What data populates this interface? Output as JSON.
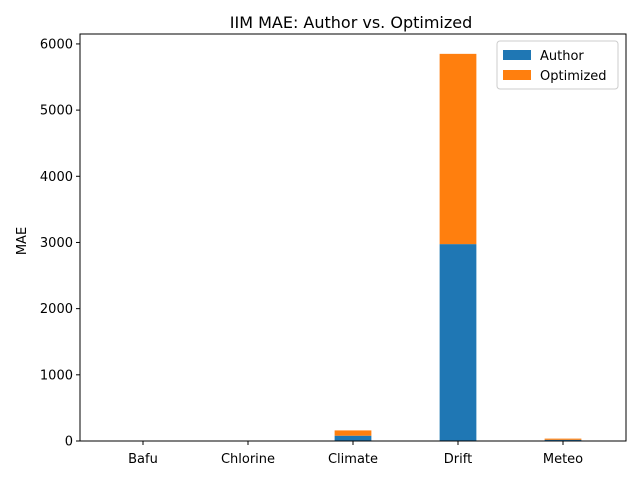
{
  "chart_data": {
    "type": "bar",
    "stacked": true,
    "title": "IIM MAE: Author vs. Optimized",
    "xlabel": "",
    "ylabel": "MAE",
    "categories": [
      "Bafu",
      "Chlorine",
      "Climate",
      "Drift",
      "Meteo"
    ],
    "series": [
      {
        "name": "Author",
        "color": "#1f77b4",
        "values": [
          3,
          2,
          80,
          2975,
          18
        ]
      },
      {
        "name": "Optimized",
        "color": "#ff7f0e",
        "values": [
          2,
          2,
          80,
          2875,
          18
        ]
      }
    ],
    "ylim": [
      0,
      6150
    ],
    "yticks": [
      0,
      1000,
      2000,
      3000,
      4000,
      5000,
      6000
    ],
    "grid": false,
    "legend_position": "top-right"
  }
}
